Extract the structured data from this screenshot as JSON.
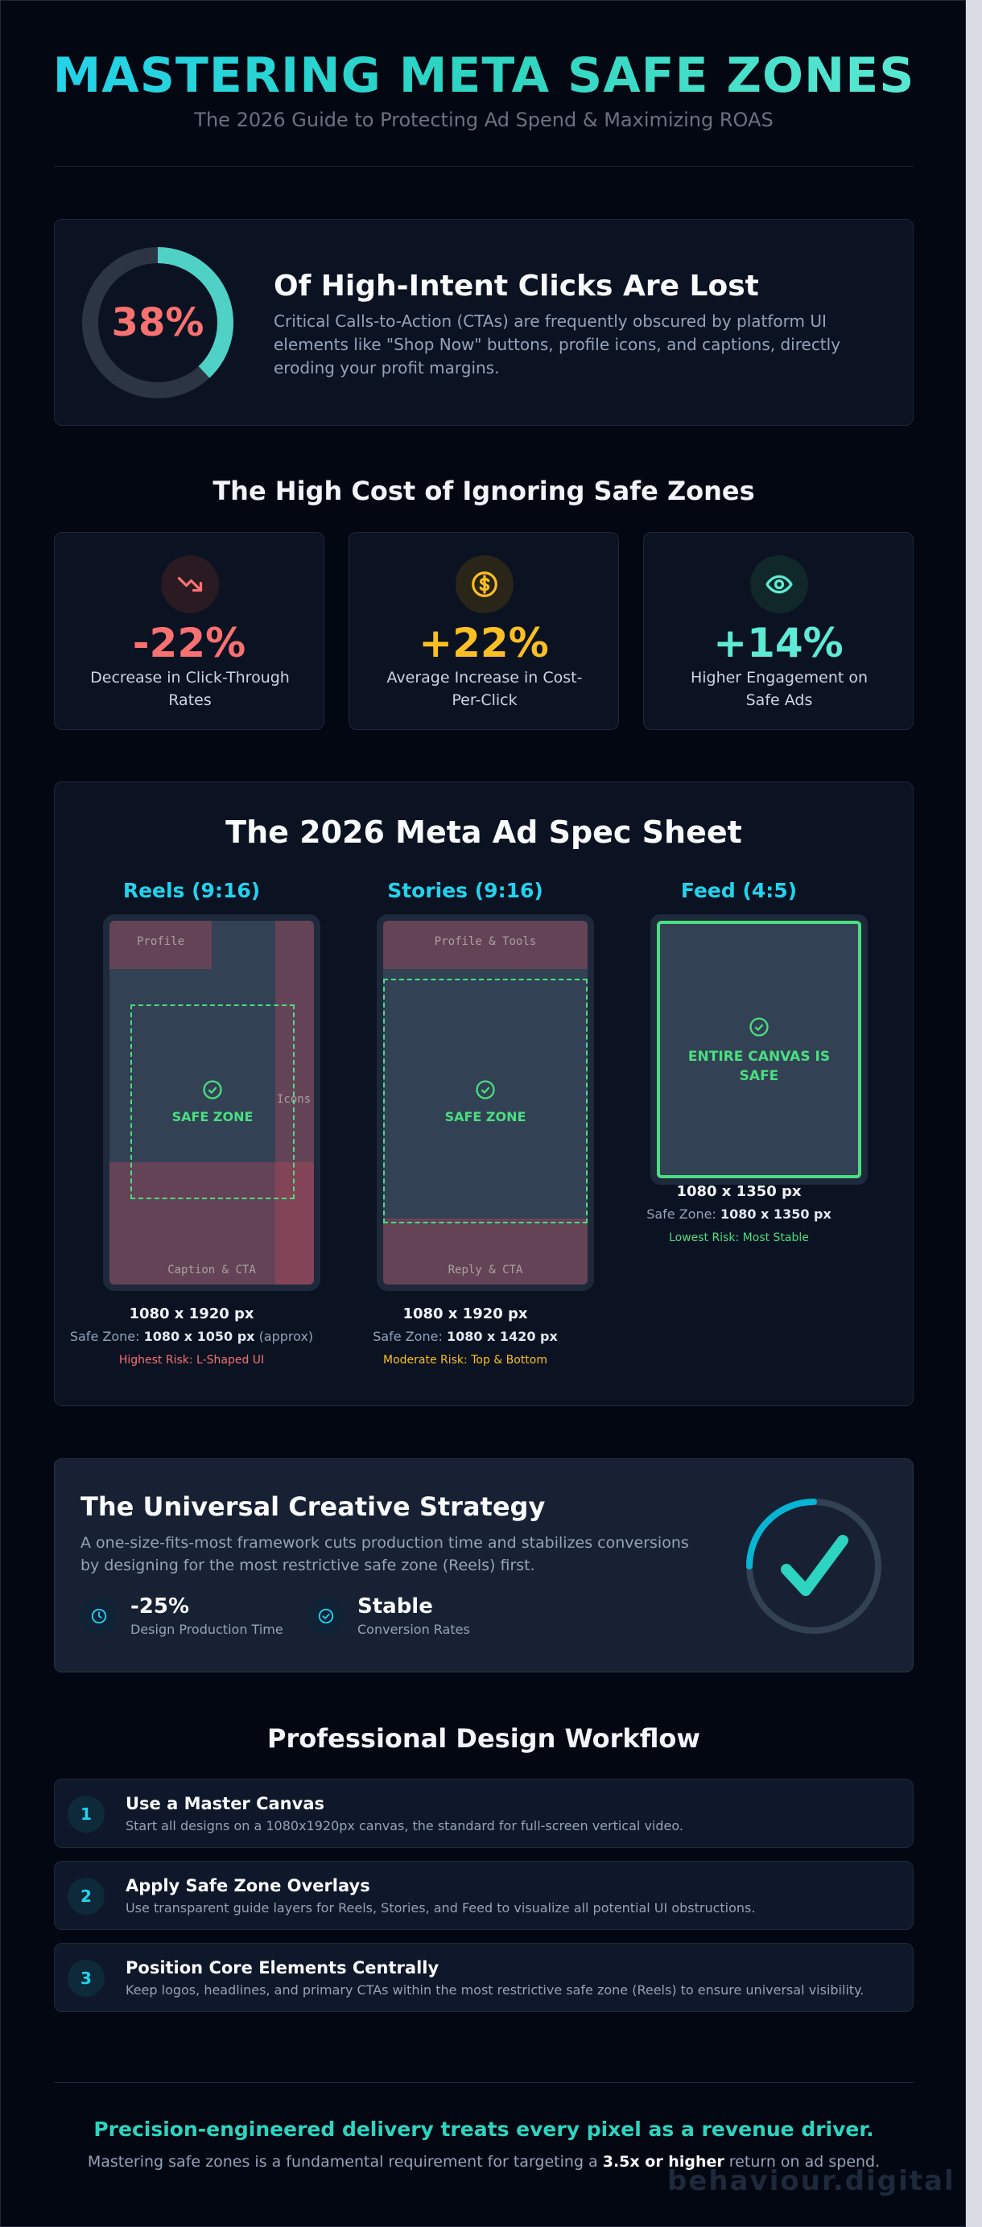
{
  "header": {
    "title": "MASTERING META SAFE ZONES",
    "subtitle": "The 2026 Guide to Protecting Ad Spend & Maximizing ROAS"
  },
  "hero": {
    "percent": "38%",
    "percent_value": 0.38,
    "heading": "Of High-Intent Clicks Are Lost",
    "body": "Critical Calls-to-Action (CTAs) are frequently obscured by platform UI elements like \"Shop Now\" buttons, profile icons, and captions, directly eroding your profit margins."
  },
  "cost_section": {
    "title": "The High Cost of Ignoring Safe Zones",
    "stats": [
      {
        "icon": "trending-down-icon",
        "value": "-22%",
        "label": "Decrease in Click-Through Rates",
        "color": "#f87171"
      },
      {
        "icon": "dollar-coin-icon",
        "value": "+22%",
        "label": "Average Increase in Cost-Per-Click",
        "color": "#fbbf24"
      },
      {
        "icon": "eye-icon",
        "value": "+14%",
        "label": "Higher Engagement on Safe Ads",
        "color": "#5eead4"
      }
    ]
  },
  "spec_sheet": {
    "title": "The 2026 Meta Ad Spec Sheet",
    "reels": {
      "title": "Reels (9:16)",
      "top_label": "Profile",
      "side_label": "Icons",
      "bottom_label": "Caption & CTA",
      "safe_label": "SAFE ZONE",
      "dimensions": "1080 x 1920 px",
      "safe_prefix": "Safe Zone:",
      "safe_value": "1080 x 1050 px",
      "safe_suffix": "(approx)",
      "risk": "Highest Risk: L-Shaped UI"
    },
    "stories": {
      "title": "Stories (9:16)",
      "top_label": "Profile & Tools",
      "bottom_label": "Reply & CTA",
      "safe_label": "SAFE ZONE",
      "dimensions": "1080 x 1920 px",
      "safe_prefix": "Safe Zone:",
      "safe_value": "1080 x 1420 px",
      "risk": "Moderate Risk: Top & Bottom"
    },
    "feed": {
      "title": "Feed (4:5)",
      "safe_label_1": "ENTIRE CANVAS IS",
      "safe_label_2": "SAFE",
      "dimensions": "1080 x 1350 px",
      "safe_prefix": "Safe Zone:",
      "safe_value": "1080 x 1350 px",
      "risk": "Lowest Risk: Most Stable"
    }
  },
  "strategy": {
    "title": "The Universal Creative Strategy",
    "body": "A one-size-fits-most framework cuts production time and stabilizes conversions by designing for the most restrictive safe zone (Reels) first.",
    "kpis": [
      {
        "icon": "clock-icon",
        "value": "-25%",
        "label": "Design Production Time"
      },
      {
        "icon": "check-circle-icon",
        "value": "Stable",
        "label": "Conversion Rates"
      }
    ]
  },
  "workflow": {
    "title": "Professional Design Workflow",
    "steps": [
      {
        "num": "1",
        "title": "Use a Master Canvas",
        "desc": "Start all designs on a 1080x1920px canvas, the standard for full-screen vertical video."
      },
      {
        "num": "2",
        "title": "Apply Safe Zone Overlays",
        "desc": "Use transparent guide layers for Reels, Stories, and Feed to visualize all potential UI obstructions."
      },
      {
        "num": "3",
        "title": "Position Core Elements Centrally",
        "desc": "Keep logos, headlines, and primary CTAs within the most restrictive safe zone (Reels) to ensure universal visibility."
      }
    ]
  },
  "footer": {
    "headline": "Precision-engineered delivery treats every pixel as a revenue driver.",
    "line_prefix": "Mastering safe zones is a fundamental requirement for targeting a",
    "line_bold": "3.5x or higher",
    "line_suffix": "return on ad spend.",
    "brand": "behaviour.digital"
  }
}
